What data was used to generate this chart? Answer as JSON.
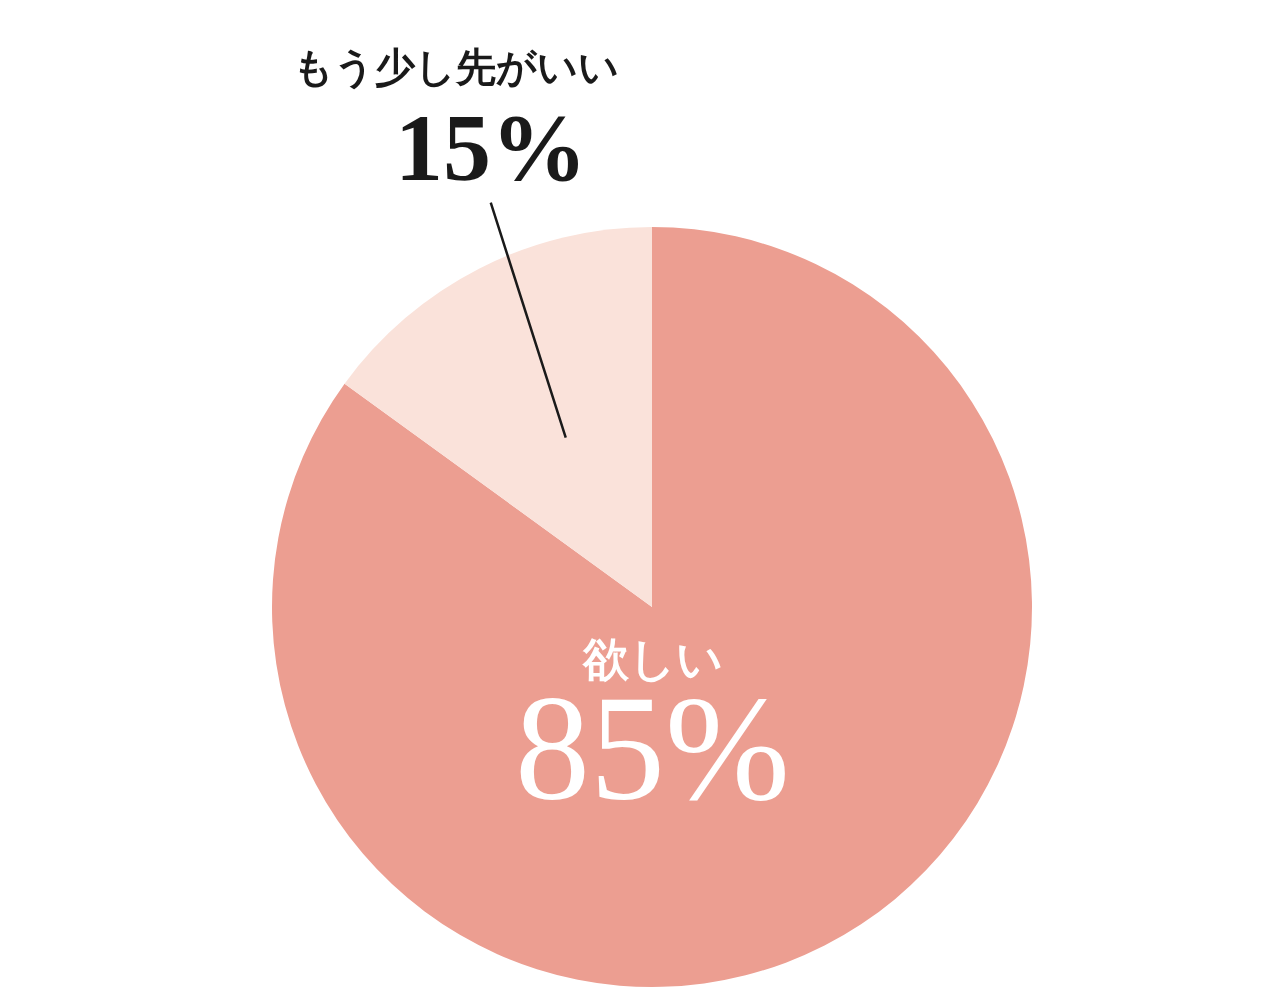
{
  "chart_data": {
    "type": "pie",
    "categories": [
      "欲しい",
      "もう少し先がいい"
    ],
    "values": [
      85,
      15
    ],
    "colors": [
      "#ec9e91",
      "#fae2da"
    ],
    "value_labels": [
      "85%",
      "15%"
    ],
    "legend": false
  }
}
